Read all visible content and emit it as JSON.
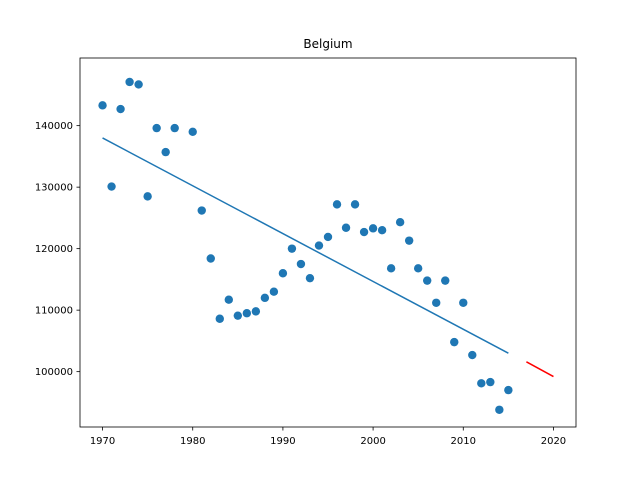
{
  "chart_data": {
    "type": "scatter",
    "title": "Belgium",
    "xlabel": "",
    "ylabel": "",
    "xlim": [
      1967.5,
      2022.5
    ],
    "ylim": [
      91000,
      151000
    ],
    "x_ticks": [
      1970,
      1980,
      1990,
      2000,
      2010,
      2020
    ],
    "y_ticks": [
      100000,
      110000,
      120000,
      130000,
      140000
    ],
    "grid": false,
    "colors": {
      "points": "#1f77b4",
      "fit_line": "#1f77b4",
      "forecast_line": "#ff0000"
    },
    "series": [
      {
        "type": "scatter",
        "x": [
          1970,
          1971,
          1972,
          1973,
          1974,
          1975,
          1976,
          1977,
          1978,
          1980,
          1981,
          1982,
          1983,
          1984,
          1985,
          1986,
          1987,
          1988,
          1989,
          1990,
          1991,
          1992,
          1993,
          1994,
          1995,
          1996,
          1997,
          1998,
          1999,
          2000,
          2001,
          2002,
          2003,
          2004,
          2005,
          2006,
          2007,
          2008,
          2009,
          2010,
          2011,
          2012,
          2013,
          2014,
          2015
        ],
        "y": [
          143300,
          130100,
          142700,
          147100,
          146700,
          128500,
          139600,
          135700,
          139600,
          139000,
          126200,
          118400,
          108600,
          111700,
          109100,
          109500,
          109800,
          112000,
          113000,
          116000,
          120000,
          117500,
          115200,
          120500,
          121900,
          127200,
          123400,
          127200,
          122700,
          123300,
          123000,
          116800,
          124300,
          121300,
          116800,
          114800,
          111200,
          114800,
          104800,
          111200,
          102700,
          98100,
          98300,
          93800,
          97000
        ]
      },
      {
        "type": "line",
        "x": [
          1970,
          2015
        ],
        "y": [
          138000,
          103000
        ]
      },
      {
        "type": "line",
        "x": [
          2017,
          2020
        ],
        "y": [
          101600,
          99200
        ]
      }
    ]
  }
}
